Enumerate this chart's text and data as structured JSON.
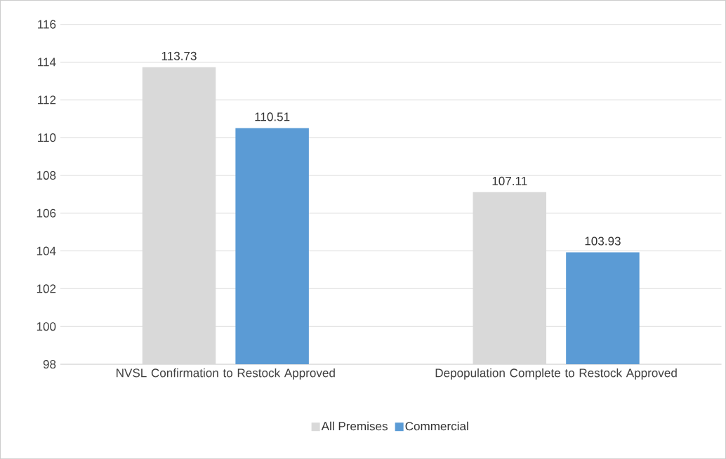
{
  "chart_data": {
    "type": "bar",
    "categories": [
      "NVSL Confirmation to Restock Approved",
      "Depopulation Complete to Restock Approved"
    ],
    "series": [
      {
        "name": "All Premises",
        "color": "#d9d9d9",
        "values": [
          113.73,
          107.11
        ]
      },
      {
        "name": "Commercial",
        "color": "#5b9bd5",
        "values": [
          110.51,
          103.93
        ]
      }
    ],
    "ylim": [
      98,
      116
    ],
    "yticks": [
      98,
      100,
      102,
      104,
      106,
      108,
      110,
      112,
      114,
      116
    ],
    "grid": "y",
    "legend": "bottom",
    "data_labels": true
  }
}
